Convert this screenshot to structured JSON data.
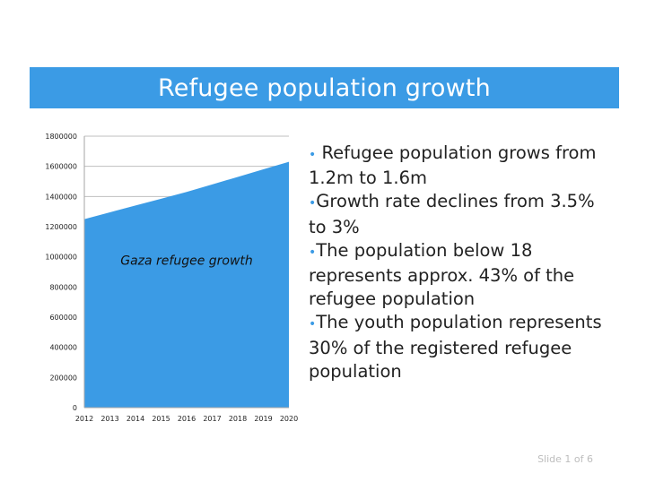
{
  "slide": {
    "title": "Refugee population growth",
    "bullets": [
      " Refugee population grows from 1.2m to 1.6m",
      "Growth rate declines from 3.5% to 3%",
      "The population below 18 represents approx. 43% of the refugee population",
      "The youth population represents 30% of the registered refugee population"
    ],
    "footer": "Slide 1 of 6"
  },
  "colors": {
    "accent": "#3b9be5",
    "area": "#3b9be5",
    "grid": "#bfbfbf"
  },
  "chart_data": {
    "type": "area",
    "title": "",
    "annotation": "Gaza refugee growth",
    "xlabel": "",
    "ylabel": "",
    "categories": [
      "2012",
      "2013",
      "2014",
      "2015",
      "2016",
      "2017",
      "2018",
      "2019",
      "2020"
    ],
    "series": [
      {
        "name": "Gaza refugee growth",
        "values": [
          1250000,
          1295000,
          1340000,
          1385000,
          1430000,
          1480000,
          1530000,
          1580000,
          1630000
        ]
      }
    ],
    "ylim": [
      0,
      1800000
    ],
    "yticks": [
      0,
      200000,
      400000,
      600000,
      800000,
      1000000,
      1200000,
      1400000,
      1600000,
      1800000
    ],
    "grid": true,
    "legend": "none"
  }
}
